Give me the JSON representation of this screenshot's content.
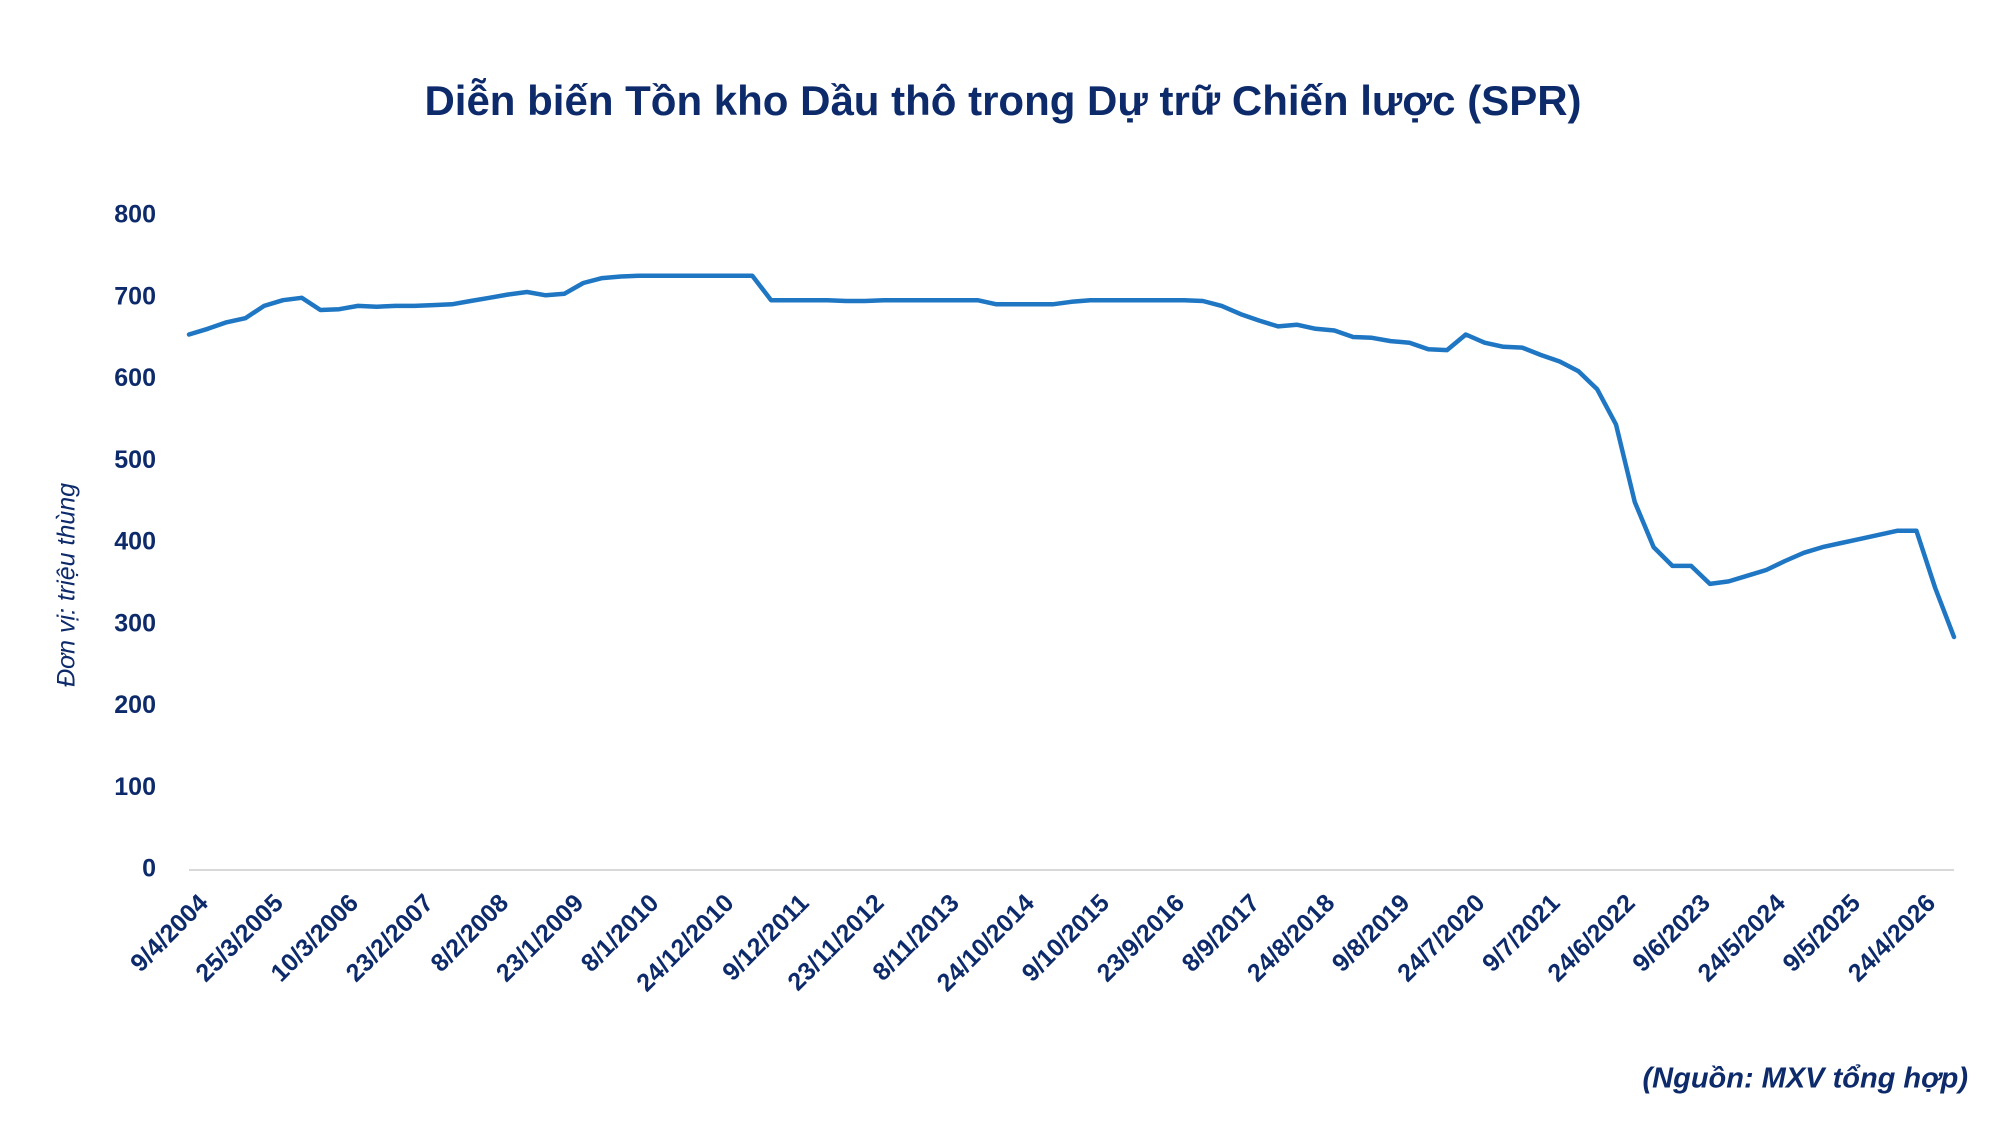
{
  "chart_data": {
    "type": "line",
    "title": "Diễn biến Tồn kho Dầu thô trong Dự trữ Chiến lược (SPR)",
    "y_label": "Đơn vị: triệu thùng",
    "source": "(Nguồn: MXV tổng hợp)",
    "categories": [
      "9/4/2004",
      null,
      null,
      null,
      "25/3/2005",
      null,
      null,
      null,
      "10/3/2006",
      null,
      null,
      null,
      "23/2/2007",
      null,
      null,
      null,
      "8/2/2008",
      null,
      null,
      null,
      "23/1/2009",
      null,
      null,
      null,
      "8/1/2010",
      null,
      null,
      null,
      "24/12/2010",
      null,
      null,
      null,
      "9/12/2011",
      null,
      null,
      null,
      "23/11/2012",
      null,
      null,
      null,
      "8/11/2013",
      null,
      null,
      null,
      "24/10/2014",
      null,
      null,
      null,
      "9/10/2015",
      null,
      null,
      null,
      "23/9/2016",
      null,
      null,
      null,
      "8/9/2017",
      null,
      null,
      null,
      "24/8/2018",
      null,
      null,
      null,
      "9/8/2019",
      null,
      null,
      null,
      "24/7/2020",
      null,
      null,
      null,
      "9/7/2021",
      null,
      null,
      null,
      "24/6/2022",
      null,
      null,
      null,
      "9/6/2023",
      null,
      null,
      null,
      "24/5/2024",
      null,
      null,
      null,
      "9/5/2025",
      null,
      null,
      null,
      "24/4/2026",
      null,
      null
    ],
    "series": [
      {
        "name": "SPR",
        "color": "#1f77c4",
        "values": [
          655,
          662,
          670,
          675,
          690,
          697,
          700,
          685,
          686,
          690,
          689,
          690,
          690,
          691,
          692,
          696,
          700,
          704,
          707,
          703,
          705,
          718,
          724,
          726,
          727,
          727,
          727,
          727,
          727,
          727,
          727,
          697,
          697,
          697,
          697,
          696,
          696,
          697,
          697,
          697,
          697,
          697,
          697,
          692,
          692,
          692,
          692,
          695,
          697,
          697,
          697,
          697,
          697,
          697,
          696,
          690,
          680,
          672,
          665,
          667,
          662,
          660,
          652,
          651,
          647,
          645,
          637,
          636,
          655,
          645,
          640,
          639,
          630,
          622,
          610,
          588,
          545,
          450,
          395,
          372,
          372,
          350,
          353,
          360,
          367,
          378,
          388,
          395,
          400,
          405,
          410,
          415,
          415,
          345,
          285
        ]
      }
    ],
    "ylim": [
      0,
      800
    ],
    "yticks": [
      0,
      100,
      200,
      300,
      400,
      500,
      600,
      700,
      800
    ],
    "grid": false
  }
}
